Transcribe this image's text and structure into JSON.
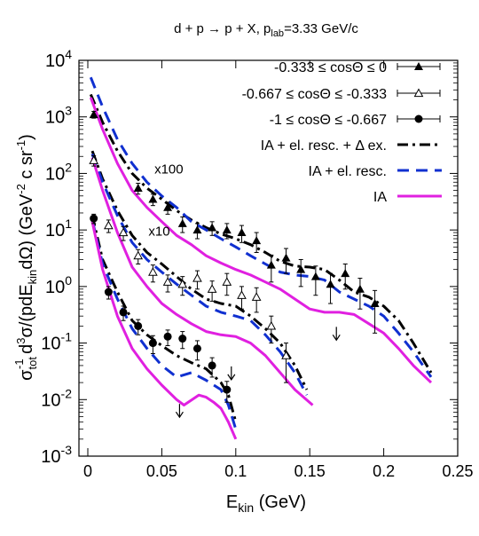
{
  "chart_data": {
    "type": "scatter",
    "title_parts": [
      "d + p ",
      "→",
      " p + X, p",
      "lab",
      "=3.33 GeV/c"
    ],
    "xlabel_parts": [
      "E",
      "kin",
      " (GeV)"
    ],
    "ylabel_parts": [
      "σ",
      "tot",
      "-1",
      " d",
      "3",
      "σ/(pdE",
      "kin",
      "dΩ) (GeV",
      "-2",
      " c sr",
      "-1",
      ")"
    ],
    "x_scale": "linear",
    "y_scale": "log",
    "xlim": [
      -0.006,
      0.25
    ],
    "ylim": [
      0.001,
      10000
    ],
    "x_ticks": [
      0,
      0.05,
      0.1,
      0.15,
      0.2,
      0.25
    ],
    "x_tick_labels": [
      "0",
      "0.05",
      "0.1",
      "0.15",
      "0.2",
      "0.25"
    ],
    "y_ticks": [
      0.001,
      0.01,
      0.1,
      1,
      10,
      100,
      1000,
      10000
    ],
    "y_tick_labels": [
      {
        "base": "10",
        "exp": "-3"
      },
      {
        "base": "10",
        "exp": "-2"
      },
      {
        "base": "10",
        "exp": "-1"
      },
      {
        "base": "10",
        "exp": "0"
      },
      {
        "base": "10",
        "exp": "1"
      },
      {
        "base": "10",
        "exp": "2"
      },
      {
        "base": "10",
        "exp": "3"
      },
      {
        "base": "10",
        "exp": "4"
      }
    ],
    "grid": false,
    "legend_position": "top-right",
    "annotations": [
      {
        "text": "x100",
        "x": 0.045,
        "y": 100
      },
      {
        "text": "x10",
        "x": 0.041,
        "y": 8
      }
    ],
    "legend": [
      {
        "label": "-0.333 ≤ cosΘ ≤ 0",
        "kind": "marker",
        "marker": "triangle-filled"
      },
      {
        "label": "-0.667 ≤ cosΘ ≤ -0.333",
        "kind": "marker",
        "marker": "triangle-open"
      },
      {
        "label": "-1 ≤ cosΘ ≤ -0.667",
        "kind": "marker",
        "marker": "circle-filled"
      },
      {
        "label": "IA + el. resc. + Δ ex.",
        "kind": "line",
        "style": "dashdot",
        "color": "#000000"
      },
      {
        "label": "IA + el. resc.",
        "kind": "line",
        "style": "dashed",
        "color": "#1030d0"
      },
      {
        "label": "IA",
        "kind": "line",
        "style": "solid",
        "color": "#e020e0"
      }
    ],
    "series": [
      {
        "legend_index": 0,
        "kind": "data",
        "marker": "triangle-filled",
        "points": [
          {
            "x": 0.004,
            "y": 1100,
            "err": 150
          },
          {
            "x": 0.034,
            "y": 55,
            "err": 12
          },
          {
            "x": 0.044,
            "y": 35,
            "err": 8
          },
          {
            "x": 0.054,
            "y": 25,
            "err": 6
          },
          {
            "x": 0.064,
            "y": 13,
            "err": 4
          },
          {
            "x": 0.074,
            "y": 10,
            "err": 3
          },
          {
            "x": 0.084,
            "y": 11,
            "err": 3
          },
          {
            "x": 0.094,
            "y": 10,
            "err": 3
          },
          {
            "x": 0.104,
            "y": 9,
            "err": 3
          },
          {
            "x": 0.114,
            "y": 6.5,
            "err": 2.5
          },
          {
            "x": 0.124,
            "y": 2.4,
            "err": 1.2
          },
          {
            "x": 0.134,
            "y": 3.2,
            "err": 1.5
          },
          {
            "x": 0.144,
            "y": 2,
            "err": 1
          },
          {
            "x": 0.154,
            "y": 1.5,
            "err": 0.8
          },
          {
            "x": 0.164,
            "y": 1.1,
            "err": 0.6
          },
          {
            "x": 0.174,
            "y": 1.7,
            "err": 0.8
          },
          {
            "x": 0.184,
            "y": 0.9,
            "err": 0.5
          },
          {
            "x": 0.194,
            "y": 0.5,
            "err": 0.35
          }
        ]
      },
      {
        "legend_index": 1,
        "kind": "data",
        "marker": "triangle-open",
        "points": [
          {
            "x": 0.004,
            "y": 170,
            "err": 35
          },
          {
            "x": 0.014,
            "y": 12,
            "err": 3
          },
          {
            "x": 0.024,
            "y": 9,
            "err": 2.5
          },
          {
            "x": 0.034,
            "y": 3.5,
            "err": 1
          },
          {
            "x": 0.044,
            "y": 1.8,
            "err": 0.6
          },
          {
            "x": 0.054,
            "y": 1.2,
            "err": 0.4
          },
          {
            "x": 0.064,
            "y": 1.1,
            "err": 0.4
          },
          {
            "x": 0.074,
            "y": 1.4,
            "err": 0.5
          },
          {
            "x": 0.084,
            "y": 0.9,
            "err": 0.35
          },
          {
            "x": 0.094,
            "y": 1.2,
            "err": 0.5
          },
          {
            "x": 0.104,
            "y": 0.7,
            "err": 0.3
          },
          {
            "x": 0.114,
            "y": 0.65,
            "err": 0.3
          },
          {
            "x": 0.124,
            "y": 0.2,
            "err": 0.1
          },
          {
            "x": 0.134,
            "y": 0.06,
            "err": 0.04
          }
        ]
      },
      {
        "legend_index": 2,
        "kind": "data",
        "marker": "circle-filled",
        "points": [
          {
            "x": 0.004,
            "y": 16,
            "err": 3
          },
          {
            "x": 0.014,
            "y": 0.8,
            "err": 0.2
          },
          {
            "x": 0.024,
            "y": 0.35,
            "err": 0.1
          },
          {
            "x": 0.034,
            "y": 0.2,
            "err": 0.06
          },
          {
            "x": 0.044,
            "y": 0.1,
            "err": 0.035
          },
          {
            "x": 0.054,
            "y": 0.13,
            "err": 0.04
          },
          {
            "x": 0.064,
            "y": 0.12,
            "err": 0.04
          },
          {
            "x": 0.074,
            "y": 0.08,
            "err": 0.03
          },
          {
            "x": 0.084,
            "y": 0.04,
            "err": 0.015
          },
          {
            "x": 0.094,
            "y": 0.015,
            "err": 0.006
          }
        ]
      },
      {
        "legend_index": 3,
        "kind": "line",
        "style": "dashdot",
        "color": "#000000",
        "points": [
          [
            0.002,
            2500
          ],
          [
            0.01,
            800
          ],
          [
            0.02,
            250
          ],
          [
            0.03,
            100
          ],
          [
            0.04,
            55
          ],
          [
            0.05,
            35
          ],
          [
            0.06,
            22
          ],
          [
            0.07,
            15
          ],
          [
            0.08,
            11
          ],
          [
            0.09,
            8.5
          ],
          [
            0.1,
            7
          ],
          [
            0.11,
            5.5
          ],
          [
            0.12,
            4
          ],
          [
            0.13,
            2.8
          ],
          [
            0.14,
            2.3
          ],
          [
            0.15,
            2.2
          ],
          [
            0.16,
            2
          ],
          [
            0.17,
            1.3
          ],
          [
            0.18,
            0.8
          ],
          [
            0.19,
            0.65
          ],
          [
            0.2,
            0.45
          ],
          [
            0.21,
            0.25
          ],
          [
            0.22,
            0.1
          ],
          [
            0.232,
            0.03
          ]
        ]
      },
      {
        "legend_index": 4,
        "kind": "line",
        "style": "dashed",
        "color": "#1030d0",
        "points": [
          [
            0.002,
            5000
          ],
          [
            0.01,
            1500
          ],
          [
            0.02,
            400
          ],
          [
            0.03,
            150
          ],
          [
            0.04,
            70
          ],
          [
            0.05,
            40
          ],
          [
            0.06,
            25
          ],
          [
            0.07,
            14
          ],
          [
            0.08,
            10
          ],
          [
            0.09,
            7
          ],
          [
            0.1,
            5
          ],
          [
            0.11,
            3.5
          ],
          [
            0.12,
            2.5
          ],
          [
            0.13,
            1.8
          ],
          [
            0.14,
            1.6
          ],
          [
            0.15,
            1.5
          ],
          [
            0.16,
            1.3
          ],
          [
            0.17,
            0.8
          ],
          [
            0.18,
            0.6
          ],
          [
            0.19,
            0.45
          ],
          [
            0.2,
            0.3
          ],
          [
            0.21,
            0.15
          ],
          [
            0.22,
            0.07
          ],
          [
            0.232,
            0.025
          ]
        ]
      },
      {
        "legend_index": 5,
        "kind": "line",
        "style": "solid",
        "color": "#e020e0",
        "points": [
          [
            0.002,
            2200
          ],
          [
            0.01,
            600
          ],
          [
            0.02,
            150
          ],
          [
            0.03,
            50
          ],
          [
            0.04,
            25
          ],
          [
            0.05,
            14
          ],
          [
            0.06,
            8
          ],
          [
            0.07,
            5.5
          ],
          [
            0.08,
            3.5
          ],
          [
            0.09,
            2.6
          ],
          [
            0.1,
            2
          ],
          [
            0.11,
            1.6
          ],
          [
            0.12,
            1.2
          ],
          [
            0.13,
            0.9
          ],
          [
            0.14,
            0.6
          ],
          [
            0.15,
            0.4
          ],
          [
            0.16,
            0.35
          ],
          [
            0.17,
            0.35
          ],
          [
            0.18,
            0.32
          ],
          [
            0.19,
            0.22
          ],
          [
            0.2,
            0.15
          ],
          [
            0.21,
            0.08
          ],
          [
            0.22,
            0.04
          ],
          [
            0.232,
            0.02
          ]
        ]
      },
      {
        "legend_index": 3,
        "kind": "line",
        "style": "dashdot",
        "color": "#000000",
        "points": [
          [
            0.003,
            250
          ],
          [
            0.01,
            80
          ],
          [
            0.02,
            22
          ],
          [
            0.03,
            8
          ],
          [
            0.04,
            4
          ],
          [
            0.05,
            2.5
          ],
          [
            0.06,
            1.5
          ],
          [
            0.07,
            0.9
          ],
          [
            0.08,
            0.6
          ],
          [
            0.09,
            0.5
          ],
          [
            0.1,
            0.45
          ],
          [
            0.11,
            0.3
          ],
          [
            0.12,
            0.18
          ],
          [
            0.13,
            0.1
          ],
          [
            0.14,
            0.04
          ],
          [
            0.148,
            0.015
          ]
        ]
      },
      {
        "legend_index": 4,
        "kind": "line",
        "style": "dashed",
        "color": "#1030d0",
        "points": [
          [
            0.003,
            220
          ],
          [
            0.01,
            70
          ],
          [
            0.02,
            18
          ],
          [
            0.03,
            6
          ],
          [
            0.04,
            3
          ],
          [
            0.05,
            1.8
          ],
          [
            0.06,
            1.1
          ],
          [
            0.07,
            0.7
          ],
          [
            0.08,
            0.45
          ],
          [
            0.09,
            0.35
          ],
          [
            0.1,
            0.3
          ],
          [
            0.11,
            0.25
          ],
          [
            0.12,
            0.14
          ],
          [
            0.13,
            0.07
          ],
          [
            0.14,
            0.03
          ],
          [
            0.148,
            0.012
          ]
        ]
      },
      {
        "legend_index": 5,
        "kind": "line",
        "style": "solid",
        "color": "#e020e0",
        "points": [
          [
            0.003,
            190
          ],
          [
            0.01,
            50
          ],
          [
            0.02,
            9
          ],
          [
            0.03,
            2.2
          ],
          [
            0.04,
            1
          ],
          [
            0.05,
            0.5
          ],
          [
            0.06,
            0.32
          ],
          [
            0.07,
            0.22
          ],
          [
            0.08,
            0.16
          ],
          [
            0.09,
            0.14
          ],
          [
            0.1,
            0.13
          ],
          [
            0.11,
            0.1
          ],
          [
            0.12,
            0.06
          ],
          [
            0.13,
            0.03
          ],
          [
            0.14,
            0.015
          ],
          [
            0.152,
            0.008
          ]
        ]
      },
      {
        "legend_index": 3,
        "kind": "line",
        "style": "dashdot",
        "color": "#000000",
        "points": [
          [
            0.003,
            18
          ],
          [
            0.01,
            3
          ],
          [
            0.02,
            0.8
          ],
          [
            0.03,
            0.25
          ],
          [
            0.04,
            0.14
          ],
          [
            0.05,
            0.09
          ],
          [
            0.06,
            0.06
          ],
          [
            0.07,
            0.045
          ],
          [
            0.08,
            0.035
          ],
          [
            0.09,
            0.02
          ],
          [
            0.095,
            0.012
          ],
          [
            0.1,
            0.004
          ]
        ]
      },
      {
        "legend_index": 4,
        "kind": "line",
        "style": "dashed",
        "color": "#1030d0",
        "points": [
          [
            0.003,
            15
          ],
          [
            0.01,
            2.5
          ],
          [
            0.02,
            0.6
          ],
          [
            0.03,
            0.18
          ],
          [
            0.04,
            0.08
          ],
          [
            0.05,
            0.04
          ],
          [
            0.06,
            0.025
          ],
          [
            0.07,
            0.03
          ],
          [
            0.08,
            0.022
          ],
          [
            0.09,
            0.015
          ],
          [
            0.095,
            0.008
          ],
          [
            0.1,
            0.003
          ]
        ]
      },
      {
        "legend_index": 5,
        "kind": "line",
        "style": "solid",
        "color": "#e020e0",
        "points": [
          [
            0.003,
            14
          ],
          [
            0.01,
            2
          ],
          [
            0.02,
            0.3
          ],
          [
            0.03,
            0.08
          ],
          [
            0.04,
            0.035
          ],
          [
            0.05,
            0.018
          ],
          [
            0.06,
            0.01
          ],
          [
            0.065,
            0.008
          ],
          [
            0.075,
            0.012
          ],
          [
            0.08,
            0.011
          ],
          [
            0.085,
            0.009
          ],
          [
            0.09,
            0.007
          ],
          [
            0.095,
            0.004
          ],
          [
            0.1,
            0.002
          ]
        ]
      }
    ],
    "upper_limits": [
      {
        "x": 0.062,
        "y": 0.0065
      },
      {
        "x": 0.097,
        "y": 0.03
      },
      {
        "x": 0.168,
        "y": 0.15
      }
    ]
  }
}
